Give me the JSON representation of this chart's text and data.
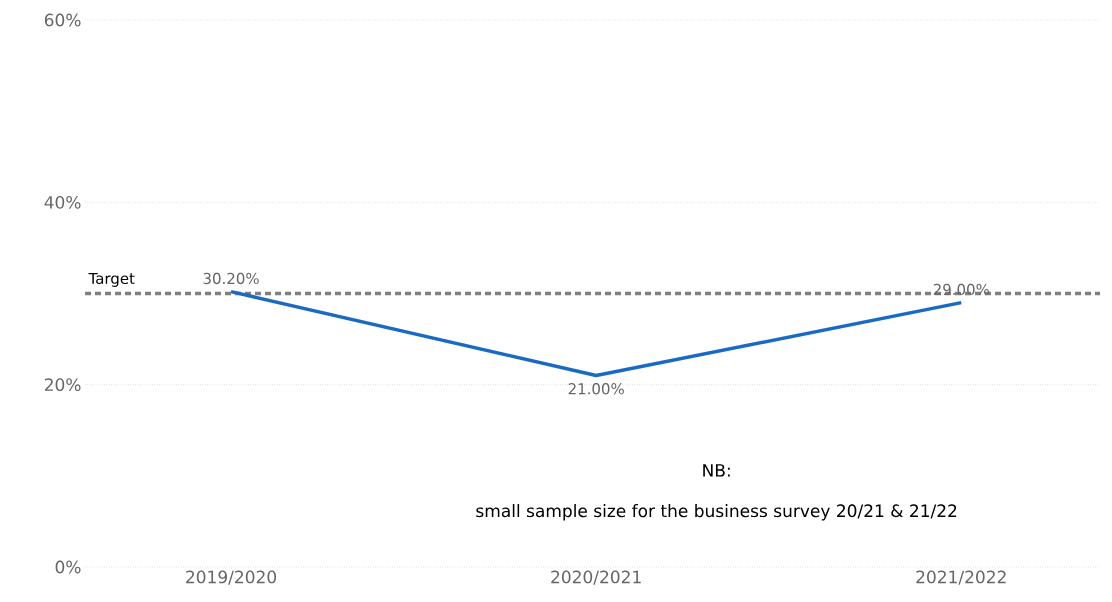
{
  "chart_data": {
    "type": "line",
    "categories": [
      "2019/2020",
      "2020/2021",
      "2021/2022"
    ],
    "series": [
      {
        "color": "#1a6ac4",
        "values": [
          30.2,
          21.0,
          29.0
        ],
        "value_labels": [
          "30.20%",
          "21.00%",
          "29.00%"
        ]
      }
    ],
    "ylim": [
      0,
      60
    ],
    "yticks": [
      {
        "value": 0,
        "label": "0%"
      },
      {
        "value": 20,
        "label": "20%"
      },
      {
        "value": 40,
        "label": "40%"
      },
      {
        "value": 60,
        "label": "60%"
      }
    ],
    "grid": "y",
    "marker": "none",
    "line_style": "solid",
    "ref_lines": [
      {
        "axis": "y",
        "value": 30,
        "label": "Target",
        "color": "#808080",
        "line_style": "dashed"
      }
    ],
    "annotations": [
      "NB:",
      "small sample size for the business survey 20/21 & 21/22"
    ]
  }
}
